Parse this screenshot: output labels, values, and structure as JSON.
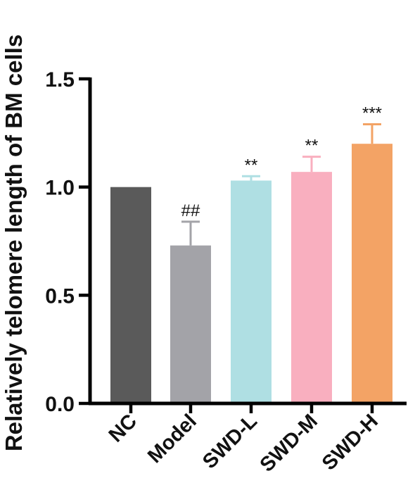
{
  "chart_data": {
    "type": "bar",
    "ylabel": "Relatively telomere length of BM cells",
    "xlabel": "",
    "categories": [
      "NC",
      "Model",
      "SWD-L",
      "SWD-M",
      "SWD-H"
    ],
    "values": [
      1.0,
      0.73,
      1.03,
      1.07,
      1.2
    ],
    "errors": [
      0.0,
      0.11,
      0.02,
      0.07,
      0.09
    ],
    "significance": [
      "",
      "##",
      "**",
      "**",
      "***"
    ],
    "colors": [
      "#5a5a5a",
      "#a3a3a8",
      "#afdfe3",
      "#f9afbf",
      "#f3a365"
    ],
    "ylim": [
      0,
      1.5
    ],
    "yticks": [
      "0.0",
      "0.5",
      "1.0",
      "1.5"
    ],
    "grid": false
  }
}
